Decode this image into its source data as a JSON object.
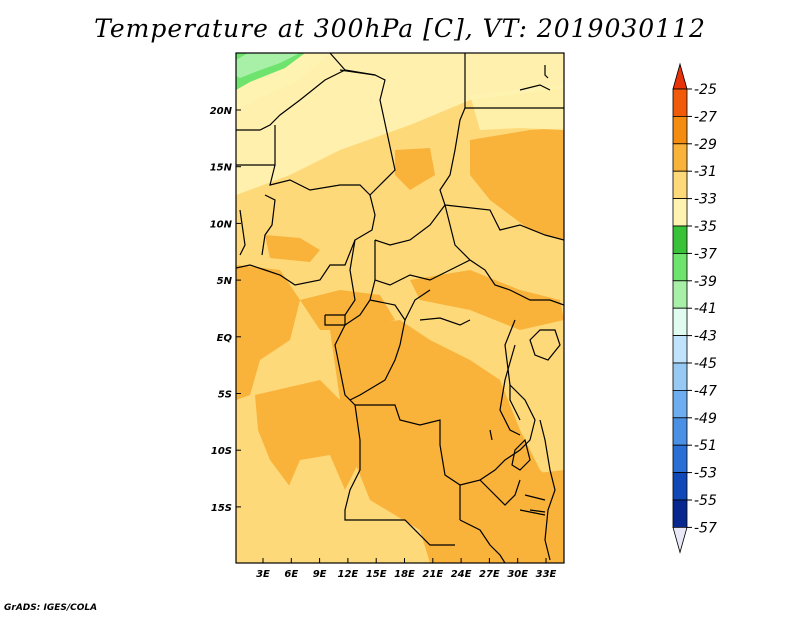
{
  "title": "Temperature at 300hPa [C], VT: 2019030112",
  "credit": "GrADS: IGES/COLA",
  "map": {
    "lon_ticks": [
      "3E",
      "6E",
      "9E",
      "12E",
      "15E",
      "18E",
      "21E",
      "24E",
      "27E",
      "30E",
      "33E"
    ],
    "lat_ticks": [
      "20N",
      "15N",
      "10N",
      "5N",
      "EQ",
      "5S",
      "10S",
      "15S"
    ]
  },
  "colorbar": {
    "labels": [
      "-25",
      "-27",
      "-29",
      "-31",
      "-33",
      "-35",
      "-37",
      "-39",
      "-41",
      "-43",
      "-45",
      "-47",
      "-49",
      "-51",
      "-53",
      "-55",
      "-57"
    ],
    "colors": {
      "top_arrow": "#e8320a",
      "bins": [
        "#f05a08",
        "#f48c10",
        "#f9b23a",
        "#fdd97a",
        "#fff3b2",
        "#38c238",
        "#6ee46e",
        "#a8f0a8",
        "#e0fbf0",
        "#bfe3fa",
        "#96caf4",
        "#6eaef0",
        "#4a90e4",
        "#2a6fd6",
        "#1048b8",
        "#082890"
      ],
      "bottom_arrow": "#e8e8f8"
    }
  }
}
